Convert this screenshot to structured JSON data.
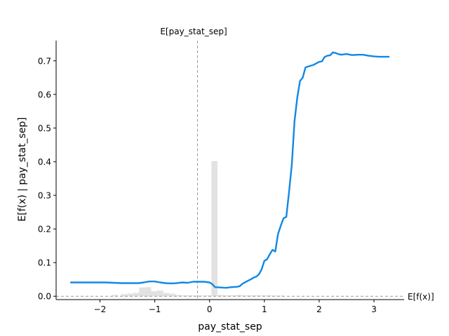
{
  "chart_data": {
    "type": "line",
    "xlabel": "pay_stat_sep",
    "ylabel": "E[f(x) | pay_stat_sep]",
    "expected_x_label": "E[pay_stat_sep]",
    "expected_fx_label": "E[f(x)]",
    "expected_x_value": -0.22,
    "expected_fx_value": 0.0,
    "xlim": [
      -2.8,
      3.55
    ],
    "ylim": [
      -0.01,
      0.76
    ],
    "xticks": [
      -2,
      -1,
      0,
      1,
      2,
      3
    ],
    "xtick_labels": [
      "−2",
      "−1",
      "0",
      "1",
      "2",
      "3"
    ],
    "yticks": [
      0.0,
      0.1,
      0.2,
      0.3,
      0.4,
      0.5,
      0.6,
      0.7
    ],
    "ytick_labels": [
      "0.0",
      "0.1",
      "0.2",
      "0.3",
      "0.4",
      "0.5",
      "0.6",
      "0.7"
    ],
    "grid": false,
    "line_color": "#1188e6",
    "hist_color": "#e2e2e2",
    "series": [
      {
        "x": [
          -2.53,
          -2.2,
          -1.9,
          -1.6,
          -1.5,
          -1.3,
          -1.2,
          -1.1,
          -1.0,
          -0.9,
          -0.8,
          -0.7,
          -0.6,
          -0.5,
          -0.4,
          -0.3,
          -0.2,
          -0.1,
          0.0,
          0.05,
          0.1,
          0.2,
          0.3,
          0.4,
          0.5,
          0.55,
          0.6,
          0.7,
          0.75,
          0.8,
          0.85,
          0.9,
          0.95,
          1.0,
          1.05,
          1.1,
          1.15,
          1.2,
          1.25,
          1.3,
          1.35,
          1.4,
          1.45,
          1.5,
          1.55,
          1.6,
          1.65,
          1.7,
          1.75,
          1.8,
          1.9,
          2.0,
          2.05,
          2.1,
          2.15,
          2.2,
          2.25,
          2.3,
          2.35,
          2.4,
          2.5,
          2.6,
          2.7,
          2.8,
          2.9,
          3.0,
          3.1,
          3.27
        ],
        "y": [
          0.041,
          0.041,
          0.041,
          0.039,
          0.039,
          0.039,
          0.041,
          0.044,
          0.044,
          0.041,
          0.039,
          0.038,
          0.039,
          0.041,
          0.04,
          0.043,
          0.043,
          0.043,
          0.041,
          0.036,
          0.027,
          0.026,
          0.025,
          0.027,
          0.028,
          0.03,
          0.037,
          0.046,
          0.05,
          0.055,
          0.058,
          0.065,
          0.08,
          0.105,
          0.11,
          0.125,
          0.138,
          0.133,
          0.185,
          0.21,
          0.232,
          0.236,
          0.31,
          0.39,
          0.52,
          0.59,
          0.64,
          0.65,
          0.68,
          0.683,
          0.688,
          0.697,
          0.698,
          0.711,
          0.715,
          0.716,
          0.725,
          0.723,
          0.72,
          0.718,
          0.72,
          0.717,
          0.718,
          0.718,
          0.715,
          0.713,
          0.712,
          0.712
        ]
      }
    ],
    "histogram": {
      "bin_width": 0.11,
      "centers": [
        -1.73,
        -1.56,
        -1.45,
        -1.34,
        -1.23,
        -1.12,
        -1.01,
        -0.9,
        -0.79,
        -0.68,
        -0.57,
        -0.46,
        -0.35,
        -0.24,
        -0.13,
        -0.02,
        0.09,
        0.2,
        0.31,
        0.42,
        0.53,
        0.64,
        0.75,
        0.86,
        0.97,
        1.08,
        1.19,
        1.3
      ],
      "heights": [
        0.004,
        0.006,
        0.008,
        0.01,
        0.026,
        0.027,
        0.015,
        0.017,
        0.01,
        0.008,
        0.004,
        0.003,
        0.003,
        0.002,
        0.002,
        0.003,
        0.402,
        0.004,
        0.003,
        0.003,
        0.004,
        0.003,
        0.003,
        0.003,
        0.003,
        0.003,
        0.002,
        0.002
      ]
    }
  }
}
